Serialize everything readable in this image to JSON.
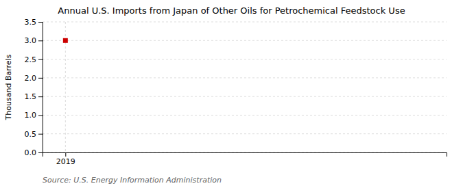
{
  "chart_data": {
    "type": "scatter",
    "title": "Annual U.S. Imports from Japan of Other Oils for Petrochemical Feedstock Use",
    "ylabel": "Thousand Barrels",
    "annotations": [
      "Source: U.S. Energy Information Administration"
    ],
    "x": [
      2019
    ],
    "values": [
      3.0
    ],
    "color": "#cc0000",
    "marker": "square",
    "xlim": [
      2018.7,
      2024.0
    ],
    "xticks": [
      2019
    ],
    "ylim": [
      0.0,
      3.5
    ],
    "yticks": [
      {
        "value": 0.0,
        "label": "0.0"
      },
      0.5,
      {
        "value": 1.0,
        "label": "1.0"
      },
      1.5,
      {
        "value": 2.0,
        "label": "2.0"
      },
      2.5,
      {
        "value": 3.0,
        "label": "3.0"
      },
      3.5
    ],
    "grid": true
  }
}
